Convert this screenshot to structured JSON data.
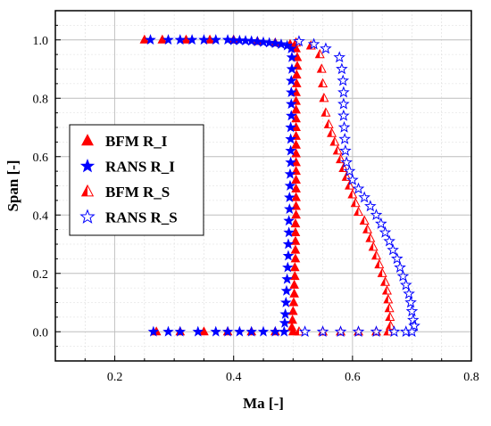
{
  "chart_data": {
    "type": "scatter",
    "xlabel": "Ma [-]",
    "ylabel": "Span [-]",
    "xlim": [
      0.1,
      0.8
    ],
    "ylim": [
      -0.1,
      1.1
    ],
    "x_ticks": [
      0.2,
      0.4,
      0.6,
      0.8
    ],
    "y_ticks": [
      0.0,
      0.2,
      0.4,
      0.6,
      0.8,
      1.0
    ],
    "grid": "major and minor, dotted",
    "legend_position": "center-left",
    "series": [
      {
        "name": "BFM R_I",
        "marker": "filled-triangle",
        "color": "#ff0000",
        "points": [
          [
            0.25,
            1.0
          ],
          [
            0.28,
            1.0
          ],
          [
            0.32,
            1.0
          ],
          [
            0.36,
            1.0
          ],
          [
            0.4,
            1.0
          ],
          [
            0.44,
            0.995
          ],
          [
            0.47,
            0.99
          ],
          [
            0.495,
            0.985
          ],
          [
            0.505,
            0.97
          ],
          [
            0.507,
            0.94
          ],
          [
            0.507,
            0.91
          ],
          [
            0.506,
            0.88
          ],
          [
            0.506,
            0.85
          ],
          [
            0.505,
            0.82
          ],
          [
            0.505,
            0.79
          ],
          [
            0.505,
            0.76
          ],
          [
            0.505,
            0.73
          ],
          [
            0.505,
            0.7
          ],
          [
            0.505,
            0.67
          ],
          [
            0.505,
            0.64
          ],
          [
            0.505,
            0.61
          ],
          [
            0.505,
            0.58
          ],
          [
            0.505,
            0.55
          ],
          [
            0.505,
            0.52
          ],
          [
            0.505,
            0.49
          ],
          [
            0.505,
            0.46
          ],
          [
            0.505,
            0.43
          ],
          [
            0.505,
            0.4
          ],
          [
            0.504,
            0.37
          ],
          [
            0.504,
            0.34
          ],
          [
            0.504,
            0.31
          ],
          [
            0.504,
            0.28
          ],
          [
            0.504,
            0.25
          ],
          [
            0.503,
            0.22
          ],
          [
            0.503,
            0.19
          ],
          [
            0.502,
            0.16
          ],
          [
            0.502,
            0.13
          ],
          [
            0.501,
            0.1
          ],
          [
            0.5,
            0.07
          ],
          [
            0.499,
            0.04
          ],
          [
            0.498,
            0.015
          ],
          [
            0.27,
            0.0
          ],
          [
            0.31,
            0.0
          ],
          [
            0.35,
            0.0
          ],
          [
            0.39,
            0.0
          ],
          [
            0.43,
            0.0
          ],
          [
            0.47,
            0.0
          ],
          [
            0.5,
            0.0
          ]
        ]
      },
      {
        "name": "RANS R_I",
        "marker": "filled-star",
        "color": "#0000ff",
        "points": [
          [
            0.26,
            1.0
          ],
          [
            0.29,
            1.0
          ],
          [
            0.31,
            1.0
          ],
          [
            0.33,
            1.0
          ],
          [
            0.35,
            1.0
          ],
          [
            0.37,
            1.0
          ],
          [
            0.39,
            1.0
          ],
          [
            0.4,
            0.998
          ],
          [
            0.41,
            0.998
          ],
          [
            0.42,
            0.997
          ],
          [
            0.43,
            0.996
          ],
          [
            0.44,
            0.994
          ],
          [
            0.45,
            0.992
          ],
          [
            0.46,
            0.99
          ],
          [
            0.47,
            0.988
          ],
          [
            0.48,
            0.985
          ],
          [
            0.49,
            0.98
          ],
          [
            0.497,
            0.97
          ],
          [
            0.498,
            0.94
          ],
          [
            0.498,
            0.9
          ],
          [
            0.497,
            0.86
          ],
          [
            0.497,
            0.82
          ],
          [
            0.497,
            0.78
          ],
          [
            0.497,
            0.74
          ],
          [
            0.496,
            0.7
          ],
          [
            0.496,
            0.66
          ],
          [
            0.496,
            0.62
          ],
          [
            0.496,
            0.58
          ],
          [
            0.495,
            0.54
          ],
          [
            0.495,
            0.5
          ],
          [
            0.494,
            0.46
          ],
          [
            0.494,
            0.42
          ],
          [
            0.493,
            0.38
          ],
          [
            0.493,
            0.34
          ],
          [
            0.492,
            0.3
          ],
          [
            0.492,
            0.26
          ],
          [
            0.491,
            0.22
          ],
          [
            0.49,
            0.18
          ],
          [
            0.489,
            0.14
          ],
          [
            0.488,
            0.1
          ],
          [
            0.487,
            0.06
          ],
          [
            0.486,
            0.03
          ],
          [
            0.265,
            0.0
          ],
          [
            0.29,
            0.0
          ],
          [
            0.31,
            0.0
          ],
          [
            0.34,
            0.0
          ],
          [
            0.37,
            0.0
          ],
          [
            0.39,
            0.0
          ],
          [
            0.41,
            0.0
          ],
          [
            0.43,
            0.0
          ],
          [
            0.45,
            0.0
          ],
          [
            0.47,
            0.0
          ],
          [
            0.485,
            0.0
          ]
        ]
      },
      {
        "name": "BFM R_S",
        "marker": "half-filled-triangle",
        "color": "#ff0000",
        "points": [
          [
            0.505,
            0.99
          ],
          [
            0.53,
            0.98
          ],
          [
            0.545,
            0.95
          ],
          [
            0.548,
            0.9
          ],
          [
            0.55,
            0.85
          ],
          [
            0.552,
            0.8
          ],
          [
            0.555,
            0.75
          ],
          [
            0.56,
            0.71
          ],
          [
            0.565,
            0.68
          ],
          [
            0.57,
            0.65
          ],
          [
            0.575,
            0.62
          ],
          [
            0.58,
            0.59
          ],
          [
            0.585,
            0.56
          ],
          [
            0.59,
            0.53
          ],
          [
            0.595,
            0.5
          ],
          [
            0.6,
            0.47
          ],
          [
            0.605,
            0.44
          ],
          [
            0.61,
            0.41
          ],
          [
            0.62,
            0.38
          ],
          [
            0.625,
            0.35
          ],
          [
            0.63,
            0.32
          ],
          [
            0.635,
            0.29
          ],
          [
            0.64,
            0.26
          ],
          [
            0.645,
            0.23
          ],
          [
            0.65,
            0.2
          ],
          [
            0.655,
            0.17
          ],
          [
            0.658,
            0.14
          ],
          [
            0.66,
            0.11
          ],
          [
            0.662,
            0.08
          ],
          [
            0.663,
            0.05
          ],
          [
            0.664,
            0.02
          ],
          [
            0.51,
            0.0
          ],
          [
            0.55,
            0.0
          ],
          [
            0.58,
            0.0
          ],
          [
            0.61,
            0.0
          ],
          [
            0.64,
            0.0
          ],
          [
            0.66,
            0.0
          ]
        ]
      },
      {
        "name": "RANS R_S",
        "marker": "hollow-star",
        "color": "#0000ff",
        "points": [
          [
            0.51,
            0.995
          ],
          [
            0.535,
            0.985
          ],
          [
            0.555,
            0.97
          ],
          [
            0.578,
            0.94
          ],
          [
            0.582,
            0.9
          ],
          [
            0.584,
            0.86
          ],
          [
            0.585,
            0.82
          ],
          [
            0.585,
            0.78
          ],
          [
            0.585,
            0.74
          ],
          [
            0.586,
            0.7
          ],
          [
            0.587,
            0.66
          ],
          [
            0.588,
            0.62
          ],
          [
            0.59,
            0.58
          ],
          [
            0.595,
            0.55
          ],
          [
            0.6,
            0.52
          ],
          [
            0.61,
            0.49
          ],
          [
            0.62,
            0.46
          ],
          [
            0.63,
            0.43
          ],
          [
            0.64,
            0.4
          ],
          [
            0.648,
            0.37
          ],
          [
            0.655,
            0.34
          ],
          [
            0.662,
            0.31
          ],
          [
            0.668,
            0.28
          ],
          [
            0.675,
            0.25
          ],
          [
            0.68,
            0.22
          ],
          [
            0.685,
            0.19
          ],
          [
            0.69,
            0.16
          ],
          [
            0.695,
            0.13
          ],
          [
            0.698,
            0.1
          ],
          [
            0.7,
            0.07
          ],
          [
            0.702,
            0.04
          ],
          [
            0.704,
            0.02
          ],
          [
            0.52,
            0.0
          ],
          [
            0.55,
            0.0
          ],
          [
            0.58,
            0.0
          ],
          [
            0.61,
            0.0
          ],
          [
            0.64,
            0.0
          ],
          [
            0.67,
            0.0
          ],
          [
            0.69,
            0.0
          ],
          [
            0.7,
            0.0
          ]
        ]
      }
    ]
  }
}
